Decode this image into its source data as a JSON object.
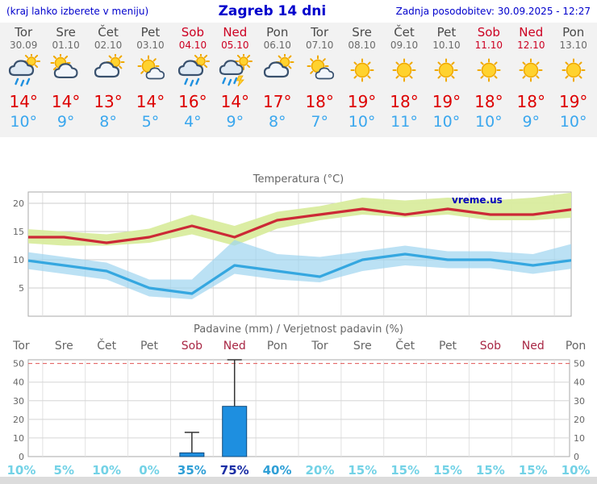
{
  "header": {
    "note": "(kraj lahko izberete v meniju)",
    "title": "Zagreb 14 dni",
    "updated": "Zadnja posodobitev: 30.09.2025 - 12:27"
  },
  "days": [
    {
      "name": "Tor",
      "date": "30.09",
      "weekend": false,
      "icon": "rain",
      "tmax": "14°",
      "tmin": "10°"
    },
    {
      "name": "Sre",
      "date": "01.10",
      "weekend": false,
      "icon": "partly-cloudy",
      "tmax": "14°",
      "tmin": "9°"
    },
    {
      "name": "Čet",
      "date": "02.10",
      "weekend": false,
      "icon": "mostly-cloudy",
      "tmax": "13°",
      "tmin": "8°"
    },
    {
      "name": "Pet",
      "date": "03.10",
      "weekend": false,
      "icon": "mostly-sunny",
      "tmax": "14°",
      "tmin": "5°"
    },
    {
      "name": "Sob",
      "date": "04.10",
      "weekend": true,
      "icon": "rain",
      "tmax": "16°",
      "tmin": "4°"
    },
    {
      "name": "Ned",
      "date": "05.10",
      "weekend": true,
      "icon": "storm-sun",
      "tmax": "14°",
      "tmin": "9°"
    },
    {
      "name": "Pon",
      "date": "06.10",
      "weekend": false,
      "icon": "mostly-cloudy",
      "tmax": "17°",
      "tmin": "8°"
    },
    {
      "name": "Tor",
      "date": "07.10",
      "weekend": false,
      "icon": "mostly-sunny",
      "tmax": "18°",
      "tmin": "7°"
    },
    {
      "name": "Sre",
      "date": "08.10",
      "weekend": false,
      "icon": "sunny",
      "tmax": "19°",
      "tmin": "10°"
    },
    {
      "name": "Čet",
      "date": "09.10",
      "weekend": false,
      "icon": "sunny",
      "tmax": "18°",
      "tmin": "11°"
    },
    {
      "name": "Pet",
      "date": "10.10",
      "weekend": false,
      "icon": "sunny",
      "tmax": "19°",
      "tmin": "10°"
    },
    {
      "name": "Sob",
      "date": "11.10",
      "weekend": true,
      "icon": "sunny",
      "tmax": "18°",
      "tmin": "10°"
    },
    {
      "name": "Ned",
      "date": "12.10",
      "weekend": true,
      "icon": "sunny",
      "tmax": "18°",
      "tmin": "9°"
    },
    {
      "name": "Pon",
      "date": "13.10",
      "weekend": false,
      "icon": "sunny",
      "tmax": "19°",
      "tmin": "10°"
    }
  ],
  "chart_data": [
    {
      "type": "line",
      "title": "Temperatura (°C)",
      "categories": [
        "Tor 30.09",
        "Sre 01.10",
        "Čet 02.10",
        "Pet 03.10",
        "Sob 04.10",
        "Ned 05.10",
        "Pon 06.10",
        "Tor 07.10",
        "Sre 08.10",
        "Čet 09.10",
        "Pet 10.10",
        "Sob 11.10",
        "Ned 12.10",
        "Pon 13.10"
      ],
      "ylim": [
        0,
        22
      ],
      "yticks": [
        5,
        10,
        15,
        20
      ],
      "grid": true,
      "legend": "none",
      "watermark": "vreme.us",
      "series": [
        {
          "name": "max-temperature",
          "color": "#cc2936",
          "values": [
            14,
            14,
            13,
            14,
            16,
            14,
            17,
            18,
            19,
            18,
            19,
            18,
            18,
            19
          ]
        },
        {
          "name": "min-temperature",
          "color": "#35a7e0",
          "values": [
            10,
            9,
            8,
            5,
            4,
            9,
            8,
            7,
            10,
            11,
            10,
            10,
            9,
            10
          ]
        }
      ],
      "bands": [
        {
          "name": "max-range",
          "color": "#d9ec9e",
          "opacity": 0.95,
          "upper": [
            15.5,
            15,
            14.5,
            15.5,
            18,
            16,
            18.5,
            19.5,
            21,
            20.5,
            21,
            20.5,
            21,
            22
          ],
          "lower": [
            13,
            12.5,
            12.5,
            13,
            14.5,
            12.5,
            15.5,
            17,
            18,
            17.5,
            18,
            17,
            17,
            17.5
          ]
        },
        {
          "name": "min-range",
          "color": "#9ed4ef",
          "opacity": 0.7,
          "upper": [
            11.5,
            10.5,
            9.5,
            6.5,
            6.5,
            13.5,
            11,
            10.5,
            11.5,
            12.5,
            11.5,
            11.5,
            11,
            13
          ],
          "lower": [
            8.5,
            7.5,
            6.5,
            3.5,
            3,
            7.5,
            6.5,
            6,
            8,
            9,
            8.5,
            8.5,
            7.5,
            8.5
          ]
        }
      ]
    },
    {
      "type": "bar",
      "title": "Padavine (mm) / Verjetnost padavin (%)",
      "categories": [
        "Tor",
        "Sre",
        "Čet",
        "Pet",
        "Sob",
        "Ned",
        "Pon",
        "Tor",
        "Sre",
        "Čet",
        "Pet",
        "Sob",
        "Ned",
        "Pon"
      ],
      "weekend": [
        false,
        false,
        false,
        false,
        true,
        true,
        false,
        false,
        false,
        false,
        false,
        true,
        true,
        false
      ],
      "values_mm": [
        0,
        0,
        0,
        0,
        2,
        27,
        0,
        0,
        0,
        0,
        0,
        0,
        0,
        0
      ],
      "whisker_max_mm": [
        0,
        0,
        0,
        0,
        13,
        52,
        0,
        0,
        0,
        0,
        0,
        0,
        0,
        0
      ],
      "ylim": [
        0,
        52
      ],
      "yticks": [
        0,
        10,
        20,
        30,
        40,
        50
      ],
      "bar_color": "#1e8fe0",
      "probabilities": [
        {
          "text": "10%",
          "tier": "low"
        },
        {
          "text": "5%",
          "tier": "low"
        },
        {
          "text": "10%",
          "tier": "low"
        },
        {
          "text": "0%",
          "tier": "low"
        },
        {
          "text": "35%",
          "tier": "mid"
        },
        {
          "text": "75%",
          "tier": "high"
        },
        {
          "text": "40%",
          "tier": "mid"
        },
        {
          "text": "20%",
          "tier": "low"
        },
        {
          "text": "15%",
          "tier": "low"
        },
        {
          "text": "15%",
          "tier": "low"
        },
        {
          "text": "15%",
          "tier": "low"
        },
        {
          "text": "15%",
          "tier": "low"
        },
        {
          "text": "15%",
          "tier": "low"
        },
        {
          "text": "10%",
          "tier": "low"
        }
      ]
    }
  ],
  "colors": {
    "link_blue": "#0000cc",
    "weekend_red": "#cc0022",
    "tmax_red": "#dd0000",
    "tmin_blue": "#3aa7ee",
    "max_band_green": "#d9ec9e",
    "min_band_blue": "#9ed4ef"
  }
}
